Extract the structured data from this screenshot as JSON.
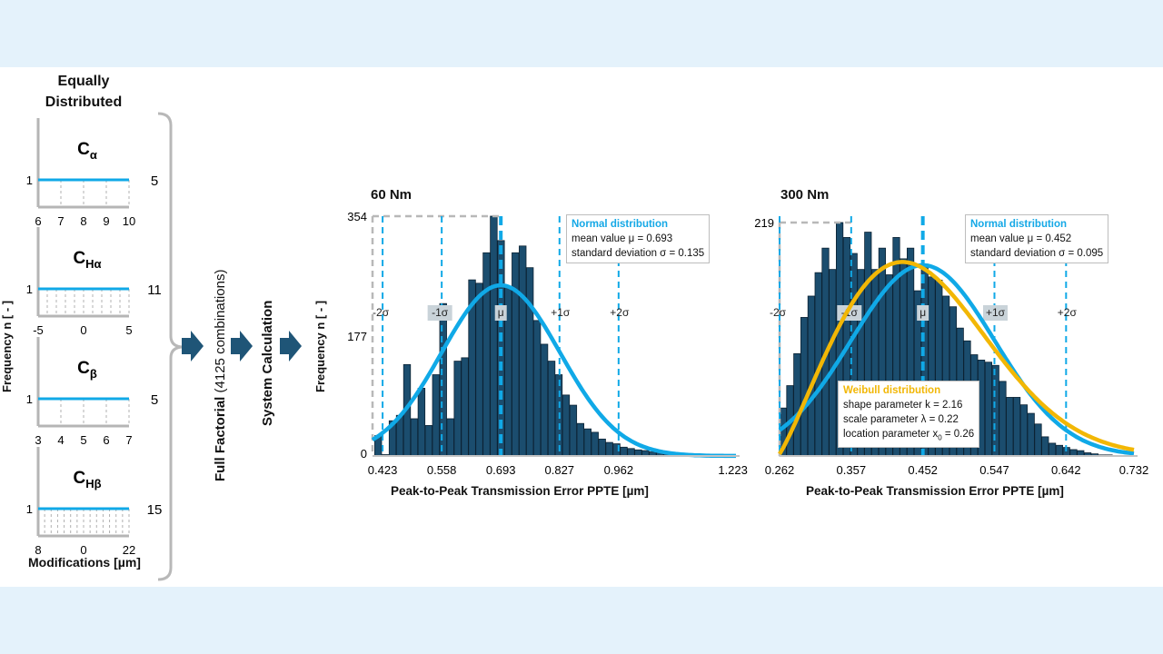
{
  "colors": {
    "normal_curve": "#10a9e7",
    "weibull_curve": "#f2b705",
    "bars": "#1b4d6e",
    "arrow": "#1f5577"
  },
  "left_panel": {
    "title_lines": [
      "Equally",
      "Distributed"
    ],
    "y_axis_label": "Frequency n [ - ]",
    "x_axis_label": "Modifications [µm]",
    "y_value": "1",
    "panels": [
      {
        "name_main": "C",
        "name_sub": "α",
        "ticks": [
          "6",
          "7",
          "8",
          "9",
          "10"
        ],
        "levels": 5,
        "count": "5"
      },
      {
        "name_main": "C",
        "name_sub": "Hα",
        "ticks": [
          "-5",
          "0",
          "5"
        ],
        "levels": 11,
        "count": "11"
      },
      {
        "name_main": "C",
        "name_sub": "β",
        "ticks": [
          "3",
          "4",
          "5",
          "6",
          "7"
        ],
        "levels": 5,
        "count": "5"
      },
      {
        "name_main": "C",
        "name_sub": "Hβ",
        "ticks": [
          "8",
          "0",
          "22"
        ],
        "levels": 15,
        "count": "15"
      }
    ]
  },
  "process": {
    "full_factorial": "Full Factorial",
    "combinations": "(4125 combinations)",
    "system_calculation": "System Calculation"
  },
  "chart_data": [
    {
      "type": "bar",
      "title": "60 Nm",
      "xlabel": "Peak-to-Peak Transmission Error PPTE [µm]",
      "ylabel": "Frequency n [ - ]",
      "x_ticks": [
        "0.423",
        "0.558",
        "0.693",
        "0.827",
        "0.962",
        "1.223"
      ],
      "x_tick_values": [
        0.423,
        0.558,
        0.693,
        0.827,
        0.962,
        1.223
      ],
      "xlim": [
        0.4,
        1.23
      ],
      "y_ticks": [
        "0",
        "177",
        "354"
      ],
      "y_tick_values": [
        0,
        177,
        354
      ],
      "ylim": [
        0,
        354
      ],
      "bin_start": 0.405,
      "bin_width": 0.0165,
      "values": [
        30,
        2,
        52,
        60,
        135,
        55,
        100,
        45,
        120,
        225,
        55,
        140,
        145,
        260,
        255,
        300,
        354,
        318,
        250,
        300,
        310,
        278,
        200,
        165,
        140,
        120,
        90,
        75,
        48,
        40,
        35,
        25,
        20,
        18,
        13,
        11,
        9,
        8,
        6,
        5,
        4,
        3,
        2,
        2,
        1,
        1,
        1,
        1,
        0,
        0
      ],
      "sigma_labels": [
        "-2σ",
        "-1σ",
        "μ",
        "+1σ",
        "+2σ"
      ],
      "sigma_positions": [
        0.423,
        0.558,
        0.693,
        0.827,
        0.962
      ],
      "normal": {
        "mu": 0.693,
        "sigma": 0.135,
        "peak": 252
      },
      "normal_legend": {
        "title": "Normal distribution",
        "line1": "mean value μ = 0.693",
        "line2": "standard deviation σ = 0.135"
      }
    },
    {
      "type": "bar",
      "title": "300 Nm",
      "xlabel": "Peak-to-Peak Transmission Error PPTE [µm]",
      "ylabel": "",
      "x_ticks": [
        "0.262",
        "0.357",
        "0.452",
        "0.547",
        "0.642",
        "0.732"
      ],
      "x_tick_values": [
        0.262,
        0.357,
        0.452,
        0.547,
        0.642,
        0.732
      ],
      "xlim": [
        0.262,
        0.732
      ],
      "y_ticks": [
        "219"
      ],
      "y_tick_values": [
        219
      ],
      "ylim": [
        0,
        219
      ],
      "bin_start": 0.262,
      "bin_width": 0.0094,
      "values": [
        45,
        66,
        96,
        130,
        150,
        172,
        195,
        175,
        219,
        205,
        190,
        175,
        210,
        175,
        195,
        170,
        205,
        185,
        195,
        155,
        180,
        168,
        165,
        150,
        140,
        120,
        108,
        95,
        90,
        88,
        85,
        70,
        55,
        55,
        48,
        40,
        30,
        18,
        12,
        10,
        8,
        6,
        5,
        3,
        2,
        1,
        1,
        0,
        0,
        0
      ],
      "sigma_labels": [
        "-2σ",
        "-1σ",
        "μ",
        "+1σ",
        "+2σ"
      ],
      "sigma_positions": [
        0.262,
        0.357,
        0.452,
        0.547,
        0.642
      ],
      "normal": {
        "mu": 0.452,
        "sigma": 0.095,
        "peak": 179
      },
      "weibull": {
        "k": 2.16,
        "lambda": 0.22,
        "x0": 0.26,
        "peak": 182
      },
      "normal_legend": {
        "title": "Normal distribution",
        "line1": "mean value μ = 0.452",
        "line2": "standard deviation σ = 0.095"
      },
      "weibull_legend": {
        "title": "Weibull distribution",
        "line1": "shape parameter k = 2.16",
        "line2": "scale parameter λ = 0.22",
        "line3_prefix": "location parameter x",
        "line3_sub": "0",
        "line3_suffix": " = 0.26"
      }
    }
  ]
}
